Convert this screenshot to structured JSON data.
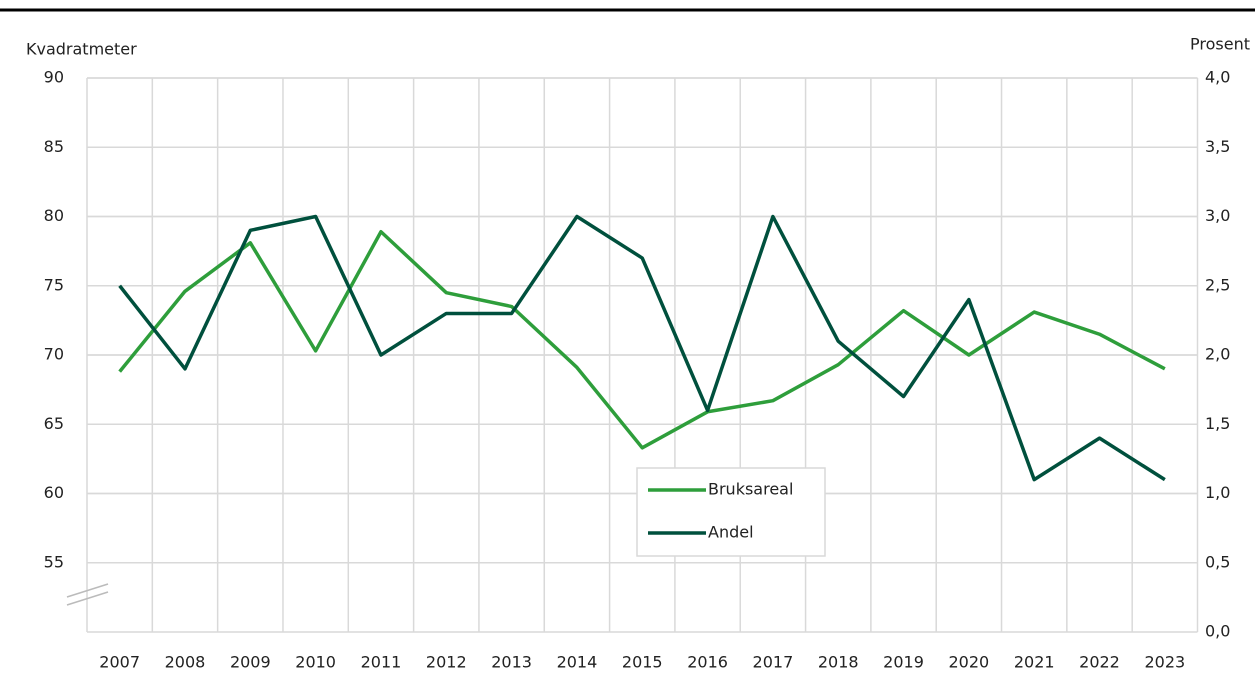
{
  "chart_data": {
    "type": "line",
    "y_label": "Kvadratmeter",
    "y2_label": "Prosent",
    "categories": [
      "2007",
      "2008",
      "2009",
      "2010",
      "2011",
      "2012",
      "2013",
      "2014",
      "2015",
      "2016",
      "2017",
      "2018",
      "2019",
      "2020",
      "2021",
      "2022",
      "2023"
    ],
    "series": [
      {
        "name": "Bruksareal",
        "color": "#2e9e3b",
        "values": [
          68.8,
          74.6,
          78.1,
          70.3,
          78.9,
          74.5,
          73.5,
          69.1,
          63.3,
          65.9,
          66.7,
          69.3,
          73.2,
          70.0,
          73.1,
          71.5,
          69.0
        ]
      },
      {
        "name": "Andel",
        "color": "#00503d",
        "axis": "y2",
        "values": [
          2.5,
          1.9,
          2.9,
          3.0,
          2.0,
          2.3,
          2.3,
          3.0,
          2.7,
          1.6,
          3.0,
          2.1,
          1.7,
          2.4,
          1.1,
          1.4,
          1.1
        ]
      }
    ],
    "ylim": [
      50,
      90
    ],
    "yticks": [
      55,
      60,
      65,
      70,
      75,
      80,
      85,
      90
    ],
    "y2lim": [
      0,
      4
    ],
    "y2ticks": [
      {
        "value": 0,
        "label": "0,0"
      },
      {
        "value": 0.5,
        "label": "0,5"
      },
      {
        "value": 1,
        "label": "1,0"
      },
      {
        "value": 1.5,
        "label": "1,5"
      },
      {
        "value": 2,
        "label": "2,0"
      },
      {
        "value": 2.5,
        "label": "2,5"
      },
      {
        "value": 3,
        "label": "3,0"
      },
      {
        "value": 3.5,
        "label": "3,5"
      },
      {
        "value": 4,
        "label": "4,0"
      }
    ],
    "grid": true
  }
}
